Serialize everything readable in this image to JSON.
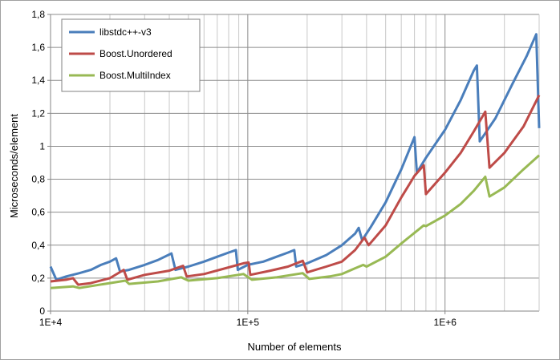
{
  "chart_data": {
    "type": "line",
    "xscale": "log",
    "xlim": [
      10000,
      3000000
    ],
    "ylim": [
      0,
      1.8
    ],
    "grid": true,
    "legend_position": "top-left",
    "xlabel": "Number of elements",
    "ylabel": "Microseconds/element",
    "x_tick_labels": [
      "1E+4",
      "1E+5",
      "1E+6"
    ],
    "y_tick_labels": [
      "0",
      "0,2",
      "0,4",
      "0,6",
      "0,8",
      "1",
      "1,2",
      "1,4",
      "1,6",
      "1,8"
    ],
    "series": [
      {
        "name": "libstdc++-v3",
        "color": "#4a7ebb",
        "points": [
          [
            10000,
            0.27
          ],
          [
            10700,
            0.19
          ],
          [
            12000,
            0.21
          ],
          [
            14000,
            0.23
          ],
          [
            16000,
            0.25
          ],
          [
            18000,
            0.28
          ],
          [
            20000,
            0.3
          ],
          [
            21500,
            0.32
          ],
          [
            22500,
            0.24
          ],
          [
            25000,
            0.25
          ],
          [
            30000,
            0.28
          ],
          [
            35000,
            0.31
          ],
          [
            41000,
            0.35
          ],
          [
            43000,
            0.25
          ],
          [
            50000,
            0.27
          ],
          [
            60000,
            0.3
          ],
          [
            70000,
            0.33
          ],
          [
            80000,
            0.355
          ],
          [
            87000,
            0.37
          ],
          [
            89000,
            0.25
          ],
          [
            100000,
            0.28
          ],
          [
            120000,
            0.3
          ],
          [
            140000,
            0.33
          ],
          [
            160000,
            0.355
          ],
          [
            172000,
            0.37
          ],
          [
            176000,
            0.27
          ],
          [
            200000,
            0.29
          ],
          [
            250000,
            0.34
          ],
          [
            300000,
            0.4
          ],
          [
            350000,
            0.47
          ],
          [
            365000,
            0.505
          ],
          [
            380000,
            0.43
          ],
          [
            420000,
            0.51
          ],
          [
            500000,
            0.66
          ],
          [
            600000,
            0.86
          ],
          [
            700000,
            1.055
          ],
          [
            720000,
            0.84
          ],
          [
            800000,
            0.93
          ],
          [
            1000000,
            1.1
          ],
          [
            1200000,
            1.28
          ],
          [
            1400000,
            1.46
          ],
          [
            1450000,
            1.49
          ],
          [
            1500000,
            1.03
          ],
          [
            1800000,
            1.17
          ],
          [
            2200000,
            1.38
          ],
          [
            2600000,
            1.55
          ],
          [
            2900000,
            1.68
          ],
          [
            3000000,
            1.11
          ]
        ]
      },
      {
        "name": "Boost.Unordered",
        "color": "#be4b48",
        "points": [
          [
            10000,
            0.18
          ],
          [
            12000,
            0.19
          ],
          [
            13000,
            0.2
          ],
          [
            13800,
            0.16
          ],
          [
            16000,
            0.17
          ],
          [
            20000,
            0.2
          ],
          [
            23500,
            0.25
          ],
          [
            24500,
            0.19
          ],
          [
            30000,
            0.22
          ],
          [
            40000,
            0.245
          ],
          [
            47000,
            0.275
          ],
          [
            49000,
            0.21
          ],
          [
            60000,
            0.225
          ],
          [
            80000,
            0.265
          ],
          [
            95000,
            0.29
          ],
          [
            101000,
            0.295
          ],
          [
            103000,
            0.22
          ],
          [
            130000,
            0.245
          ],
          [
            160000,
            0.27
          ],
          [
            190000,
            0.305
          ],
          [
            200000,
            0.235
          ],
          [
            250000,
            0.27
          ],
          [
            300000,
            0.3
          ],
          [
            350000,
            0.37
          ],
          [
            390000,
            0.445
          ],
          [
            410000,
            0.4
          ],
          [
            500000,
            0.52
          ],
          [
            600000,
            0.69
          ],
          [
            700000,
            0.82
          ],
          [
            780000,
            0.885
          ],
          [
            800000,
            0.71
          ],
          [
            1000000,
            0.84
          ],
          [
            1200000,
            0.96
          ],
          [
            1400000,
            1.09
          ],
          [
            1600000,
            1.21
          ],
          [
            1680000,
            0.87
          ],
          [
            2000000,
            0.96
          ],
          [
            2500000,
            1.12
          ],
          [
            3000000,
            1.31
          ]
        ]
      },
      {
        "name": "Boost.MultiIndex",
        "color": "#98b954",
        "points": [
          [
            10000,
            0.14
          ],
          [
            13000,
            0.15
          ],
          [
            14000,
            0.14
          ],
          [
            20000,
            0.17
          ],
          [
            24000,
            0.185
          ],
          [
            25000,
            0.165
          ],
          [
            35000,
            0.18
          ],
          [
            46000,
            0.205
          ],
          [
            50000,
            0.185
          ],
          [
            70000,
            0.2
          ],
          [
            95000,
            0.225
          ],
          [
            105000,
            0.19
          ],
          [
            140000,
            0.205
          ],
          [
            190000,
            0.23
          ],
          [
            205000,
            0.195
          ],
          [
            260000,
            0.21
          ],
          [
            300000,
            0.225
          ],
          [
            350000,
            0.26
          ],
          [
            385000,
            0.28
          ],
          [
            400000,
            0.27
          ],
          [
            500000,
            0.33
          ],
          [
            600000,
            0.41
          ],
          [
            700000,
            0.475
          ],
          [
            780000,
            0.52
          ],
          [
            800000,
            0.515
          ],
          [
            1000000,
            0.58
          ],
          [
            1200000,
            0.65
          ],
          [
            1400000,
            0.73
          ],
          [
            1600000,
            0.815
          ],
          [
            1680000,
            0.695
          ],
          [
            2000000,
            0.75
          ],
          [
            2500000,
            0.86
          ],
          [
            3000000,
            0.945
          ]
        ]
      }
    ]
  }
}
